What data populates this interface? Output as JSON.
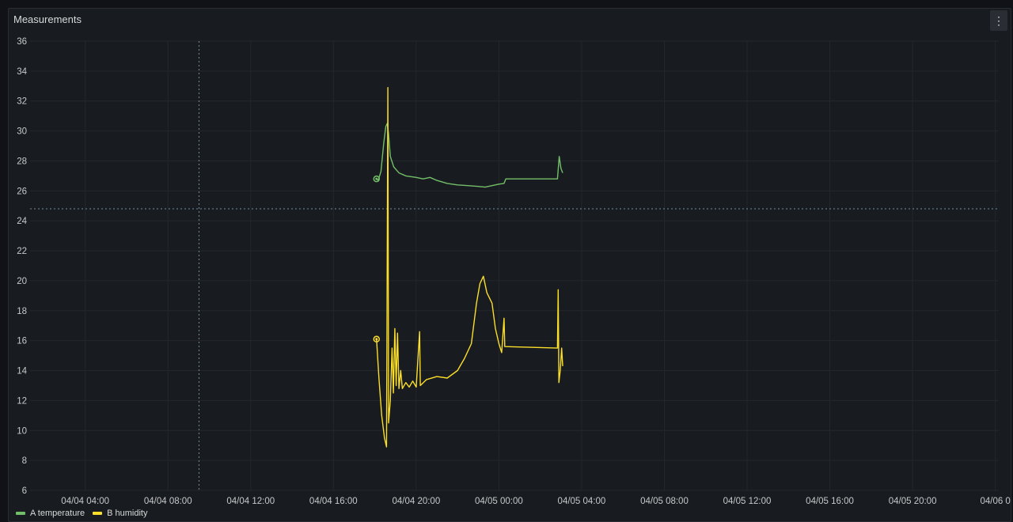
{
  "panel": {
    "title": "Measurements",
    "menu_icon": "kebab-menu-icon",
    "menu_label": "⋮"
  },
  "chart_data": {
    "type": "line",
    "title": "Measurements",
    "xlabel": "",
    "ylabel": "",
    "ylim": [
      6,
      36
    ],
    "yticks": [
      6,
      8,
      10,
      12,
      14,
      16,
      18,
      20,
      22,
      24,
      26,
      28,
      30,
      32,
      34,
      36
    ],
    "xlim": [
      "04/04 01:20",
      "04/06 00:10"
    ],
    "xticks": [
      "04/04 04:00",
      "04/04 08:00",
      "04/04 12:00",
      "04/04 16:00",
      "04/04 20:00",
      "04/05 00:00",
      "04/05 04:00",
      "04/05 08:00",
      "04/05 12:00",
      "04/05 16:00",
      "04/05 20:00",
      "04/06 0"
    ],
    "grid": true,
    "legend": "bottom-left",
    "crosshair": {
      "time": "04/04 09:30",
      "value": 24.8
    },
    "series": [
      {
        "name": "A temperature",
        "color": "#73bf69",
        "points": [
          [
            "04/04 18:05",
            26.8
          ],
          [
            "04/04 18:10",
            26.7
          ],
          [
            "04/04 18:18",
            27.3
          ],
          [
            "04/04 18:26",
            29.2
          ],
          [
            "04/04 18:32",
            30.3
          ],
          [
            "04/04 18:36",
            30.5
          ],
          [
            "04/04 18:40",
            29.8
          ],
          [
            "04/04 18:45",
            28.3
          ],
          [
            "04/04 18:55",
            27.6
          ],
          [
            "04/04 19:10",
            27.2
          ],
          [
            "04/04 19:30",
            27.0
          ],
          [
            "04/04 20:00",
            26.9
          ],
          [
            "04/04 20:20",
            26.8
          ],
          [
            "04/04 20:40",
            26.9
          ],
          [
            "04/04 21:00",
            26.7
          ],
          [
            "04/04 21:30",
            26.5
          ],
          [
            "04/04 22:00",
            26.4
          ],
          [
            "04/04 22:30",
            26.35
          ],
          [
            "04/04 23:00",
            26.3
          ],
          [
            "04/04 23:20",
            26.25
          ],
          [
            "04/04 23:40",
            26.35
          ],
          [
            "04/05 00:00",
            26.45
          ],
          [
            "04/05 00:15",
            26.5
          ],
          [
            "04/05 00:20",
            26.8
          ],
          [
            "04/05 01:30",
            26.8
          ],
          [
            "04/05 02:50",
            26.8
          ],
          [
            "04/05 02:55",
            28.3
          ],
          [
            "04/05 03:00",
            27.5
          ],
          [
            "04/05 03:05",
            27.2
          ]
        ]
      },
      {
        "name": "B humidity",
        "color": "#fade2a",
        "points": [
          [
            "04/04 18:05",
            16.1
          ],
          [
            "04/04 18:12",
            13.5
          ],
          [
            "04/04 18:20",
            11.0
          ],
          [
            "04/04 18:28",
            9.5
          ],
          [
            "04/04 18:34",
            8.9
          ],
          [
            "04/04 18:38",
            32.9
          ],
          [
            "04/04 18:40",
            10.5
          ],
          [
            "04/04 18:45",
            12.0
          ],
          [
            "04/04 18:50",
            15.5
          ],
          [
            "04/04 18:54",
            12.5
          ],
          [
            "04/04 18:58",
            16.8
          ],
          [
            "04/04 19:02",
            13.0
          ],
          [
            "04/04 19:06",
            16.5
          ],
          [
            "04/04 19:10",
            12.8
          ],
          [
            "04/04 19:15",
            14.0
          ],
          [
            "04/04 19:20",
            12.8
          ],
          [
            "04/04 19:30",
            13.2
          ],
          [
            "04/04 19:40",
            12.9
          ],
          [
            "04/04 19:50",
            13.3
          ],
          [
            "04/04 20:00",
            12.9
          ],
          [
            "04/04 20:10",
            16.6
          ],
          [
            "04/04 20:12",
            13.0
          ],
          [
            "04/04 20:30",
            13.4
          ],
          [
            "04/04 21:00",
            13.6
          ],
          [
            "04/04 21:30",
            13.5
          ],
          [
            "04/04 22:00",
            14.0
          ],
          [
            "04/04 22:20",
            14.8
          ],
          [
            "04/04 22:40",
            15.8
          ],
          [
            "04/04 22:55",
            18.5
          ],
          [
            "04/04 23:05",
            19.8
          ],
          [
            "04/04 23:15",
            20.3
          ],
          [
            "04/04 23:25",
            19.2
          ],
          [
            "04/04 23:40",
            18.5
          ],
          [
            "04/04 23:50",
            16.8
          ],
          [
            "04/05 00:00",
            15.8
          ],
          [
            "04/05 00:08",
            15.2
          ],
          [
            "04/05 00:15",
            17.5
          ],
          [
            "04/05 00:17",
            15.6
          ],
          [
            "04/05 02:50",
            15.5
          ],
          [
            "04/05 02:52",
            19.4
          ],
          [
            "04/05 02:54",
            13.2
          ],
          [
            "04/05 02:58",
            14.0
          ],
          [
            "04/05 03:02",
            15.5
          ],
          [
            "04/05 03:05",
            14.3
          ]
        ]
      }
    ]
  }
}
